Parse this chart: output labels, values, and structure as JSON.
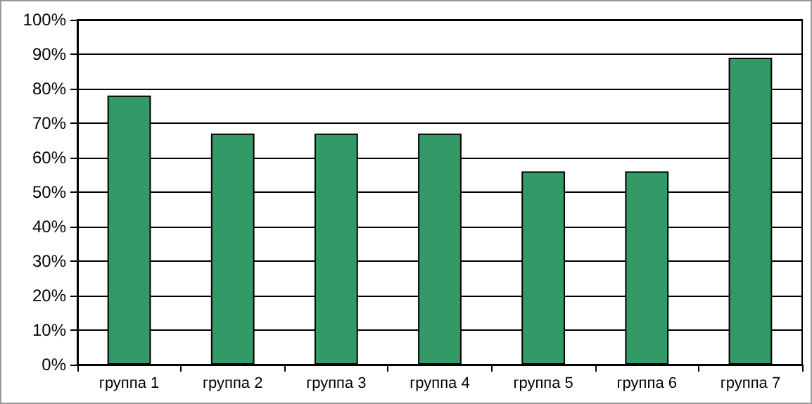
{
  "chart_data": {
    "type": "bar",
    "categories": [
      "группа 1",
      "группа 2",
      "группа 3",
      "группа 4",
      "группа 5",
      "группа 6",
      "группа 7"
    ],
    "values": [
      78,
      67,
      67,
      67,
      56,
      56,
      89
    ],
    "color": "#339966",
    "ylim": [
      0,
      100
    ],
    "yticks": [
      {
        "value": 0,
        "label": "0%"
      },
      {
        "value": 10,
        "label": "10%"
      },
      {
        "value": 20,
        "label": "20%"
      },
      {
        "value": 30,
        "label": "30%"
      },
      {
        "value": 40,
        "label": "40%"
      },
      {
        "value": 50,
        "label": "50%"
      },
      {
        "value": 60,
        "label": "60%"
      },
      {
        "value": 70,
        "label": "70%"
      },
      {
        "value": 80,
        "label": "80%"
      },
      {
        "value": 90,
        "label": "90%"
      },
      {
        "value": 100,
        "label": "100%"
      }
    ],
    "grid": "y"
  }
}
